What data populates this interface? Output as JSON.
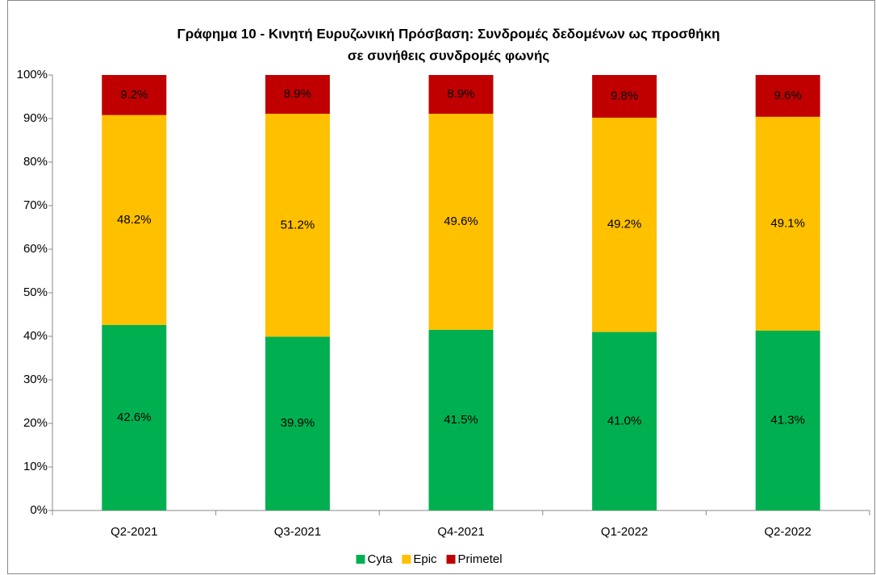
{
  "chart_data": {
    "type": "stacked_bar",
    "title": [
      "Γράφημα 10 - Κινητή Ευρυζωνική Πρόσβαση: Συνδρομές δεδομένων ως προσθήκη",
      "σε συνήθεις συνδρομές φωνής"
    ],
    "categories": [
      "Q2-2021",
      "Q3-2021",
      "Q4-2021",
      "Q1-2022",
      "Q2-2022"
    ],
    "series": [
      {
        "name": "Cyta",
        "color": "#00b050",
        "values": [
          42.6,
          39.9,
          41.5,
          41.0,
          41.3
        ],
        "value_labels": [
          "42.6%",
          "39.9%",
          "41.5%",
          "41.0%",
          "41.3%"
        ]
      },
      {
        "name": "Epic",
        "color": "#ffc000",
        "values": [
          48.2,
          51.2,
          49.6,
          49.2,
          49.1
        ],
        "value_labels": [
          "48.2%",
          "51.2%",
          "49.6%",
          "49.2%",
          "49.1%"
        ]
      },
      {
        "name": "Primetel",
        "color": "#c00000",
        "values": [
          9.2,
          8.9,
          8.9,
          9.8,
          9.6
        ],
        "value_labels": [
          "9.2%",
          "8.9%",
          "8.9%",
          "9.8%",
          "9.6%"
        ]
      }
    ],
    "ylim": [
      0,
      100
    ],
    "yticks": [
      {
        "value": 0,
        "label": "0%"
      },
      {
        "value": 10,
        "label": "10%"
      },
      {
        "value": 20,
        "label": "20%"
      },
      {
        "value": 30,
        "label": "30%"
      },
      {
        "value": 40,
        "label": "40%"
      },
      {
        "value": 50,
        "label": "50%"
      },
      {
        "value": 60,
        "label": "60%"
      },
      {
        "value": 70,
        "label": "70%"
      },
      {
        "value": 80,
        "label": "80%"
      },
      {
        "value": 90,
        "label": "90%"
      },
      {
        "value": 100,
        "label": "100%"
      }
    ],
    "legend": "bottom",
    "grid": false
  }
}
